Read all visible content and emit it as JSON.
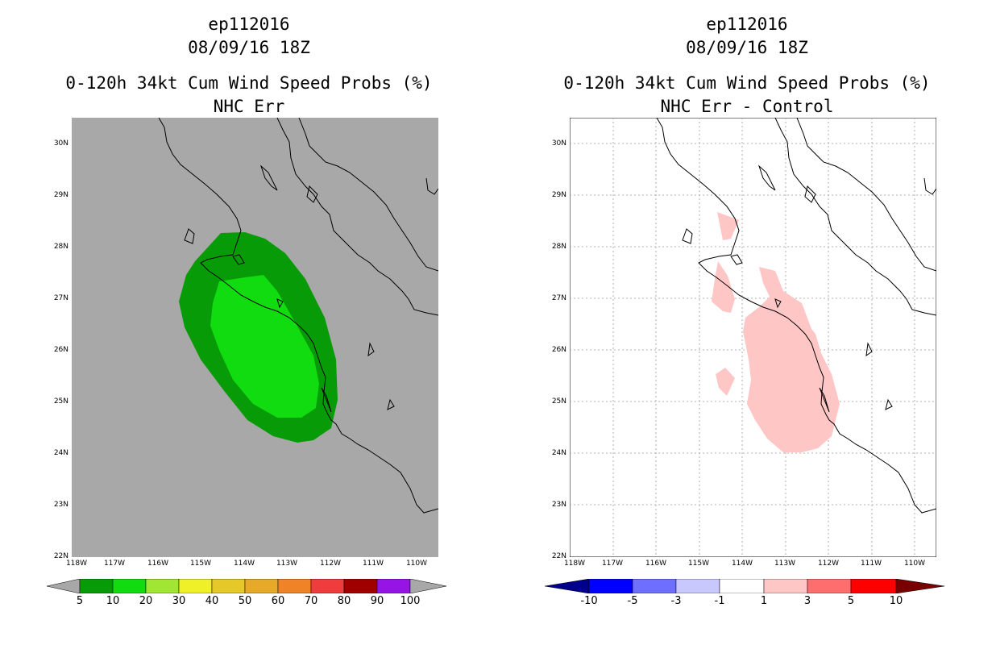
{
  "left": {
    "title_line1": "ep112016",
    "title_line2": "08/09/16 18Z",
    "title_line3": "0-120h 34kt Cum Wind Speed Probs (%)",
    "title_line4": "NHC Err",
    "background_color": "#a8a8a8",
    "colorbar_labels": [
      "5",
      "10",
      "20",
      "30",
      "40",
      "50",
      "60",
      "70",
      "80",
      "90",
      "100"
    ],
    "colorbar_colors": [
      "#a8a8a8",
      "#079b07",
      "#10dc10",
      "#a0e632",
      "#f0f028",
      "#e6c828",
      "#e6aa28",
      "#f08228",
      "#f03c3c",
      "#a00000",
      "#9614e6",
      "#a8a8a8"
    ]
  },
  "right": {
    "title_line1": "ep112016",
    "title_line2": "08/09/16 18Z",
    "title_line3": "0-120h 34kt Cum Wind Speed Probs (%)",
    "title_line4": "NHC Err - Control",
    "background_color": "#ffffff",
    "colorbar_labels": [
      "-10",
      "-5",
      "-3",
      "-1",
      "1",
      "3",
      "5",
      "10"
    ],
    "colorbar_colors": [
      "#00008c",
      "#0000ff",
      "#6e6eff",
      "#c8c8ff",
      "#ffffff",
      "#ffc6c6",
      "#ff6e6e",
      "#ff0000",
      "#780000"
    ]
  },
  "axes": {
    "lat_labels": [
      "30N",
      "29N",
      "28N",
      "27N",
      "26N",
      "25N",
      "24N",
      "23N",
      "22N"
    ],
    "lon_labels": [
      "118W",
      "117W",
      "116W",
      "115W",
      "114W",
      "113W",
      "112W",
      "111W",
      "110W"
    ],
    "lon_range": [
      -118,
      -109.5
    ],
    "lat_range": [
      22,
      30.5
    ]
  },
  "colors": {
    "pink": "#ffc6c6",
    "dark_green": "#079b07",
    "light_green": "#10dc10"
  }
}
